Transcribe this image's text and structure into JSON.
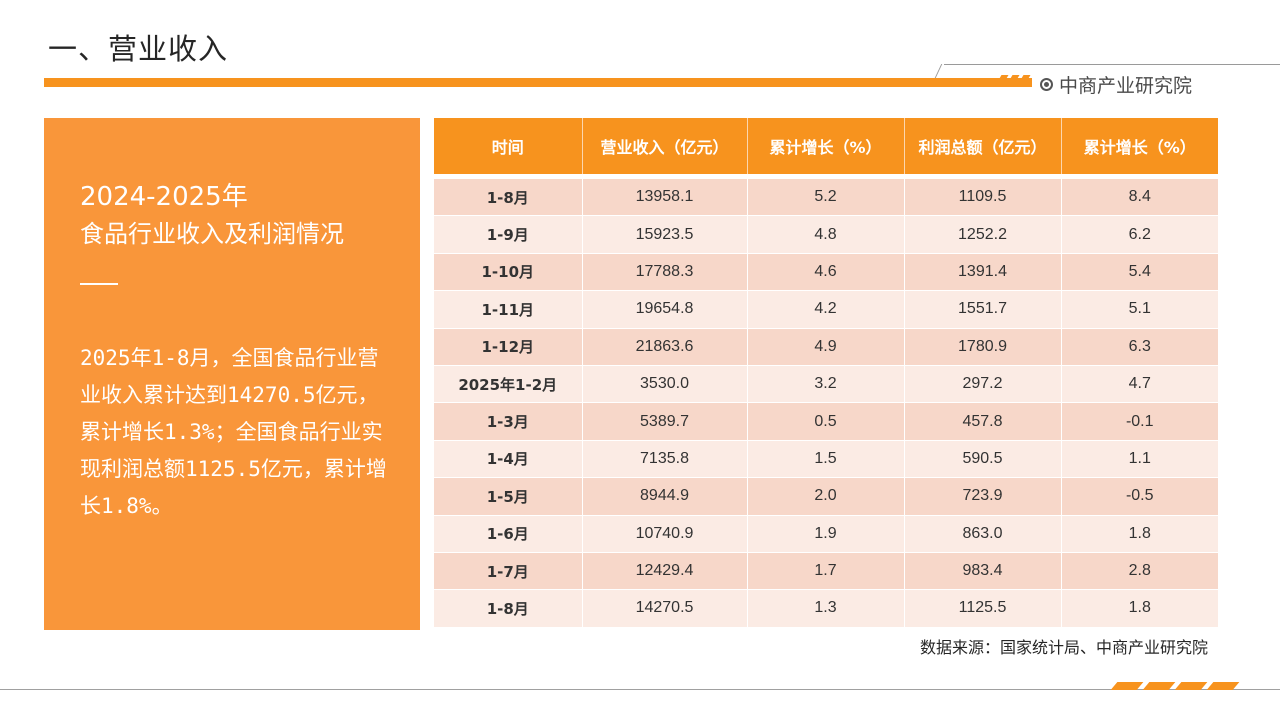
{
  "page": {
    "title": "一、营业收入",
    "brand": "中商产业研究院",
    "source": "数据来源：国家统计局、中商产业研究院"
  },
  "panel": {
    "year": "2024-2025年",
    "subtitle": "食品行业收入及利润情况",
    "body": "2025年1-8月，全国食品行业营业收入累计达到14270.5亿元，累计增长1.3%；全国食品行业实现利润总额1125.5亿元，累计增长1.8%。"
  },
  "table": {
    "headers": [
      "时间",
      "营业收入（亿元）",
      "累计增长（%）",
      "利润总额（亿元）",
      "累计增长（%）"
    ],
    "rows": [
      [
        "1-8月",
        "13958.1",
        "5.2",
        "1109.5",
        "8.4"
      ],
      [
        "1-9月",
        "15923.5",
        "4.8",
        "1252.2",
        "6.2"
      ],
      [
        "1-10月",
        "17788.3",
        "4.6",
        "1391.4",
        "5.4"
      ],
      [
        "1-11月",
        "19654.8",
        "4.2",
        "1551.7",
        "5.1"
      ],
      [
        "1-12月",
        "21863.6",
        "4.9",
        "1780.9",
        "6.3"
      ],
      [
        "2025年1-2月",
        "3530.0",
        "3.2",
        "297.2",
        "4.7"
      ],
      [
        "1-3月",
        "5389.7",
        "0.5",
        "457.8",
        "-0.1"
      ],
      [
        "1-4月",
        "7135.8",
        "1.5",
        "590.5",
        "1.1"
      ],
      [
        "1-5月",
        "8944.9",
        "2.0",
        "723.9",
        "-0.5"
      ],
      [
        "1-6月",
        "10740.9",
        "1.9",
        "863.0",
        "1.8"
      ],
      [
        "1-7月",
        "12429.4",
        "1.7",
        "983.4",
        "2.8"
      ],
      [
        "1-8月",
        "14270.5",
        "1.3",
        "1125.5",
        "1.8"
      ]
    ]
  },
  "colors": {
    "accent": "#f7931e",
    "panel": "#f9963a",
    "row_dark": "#f7d7c9",
    "row_light": "#fbebe4"
  }
}
